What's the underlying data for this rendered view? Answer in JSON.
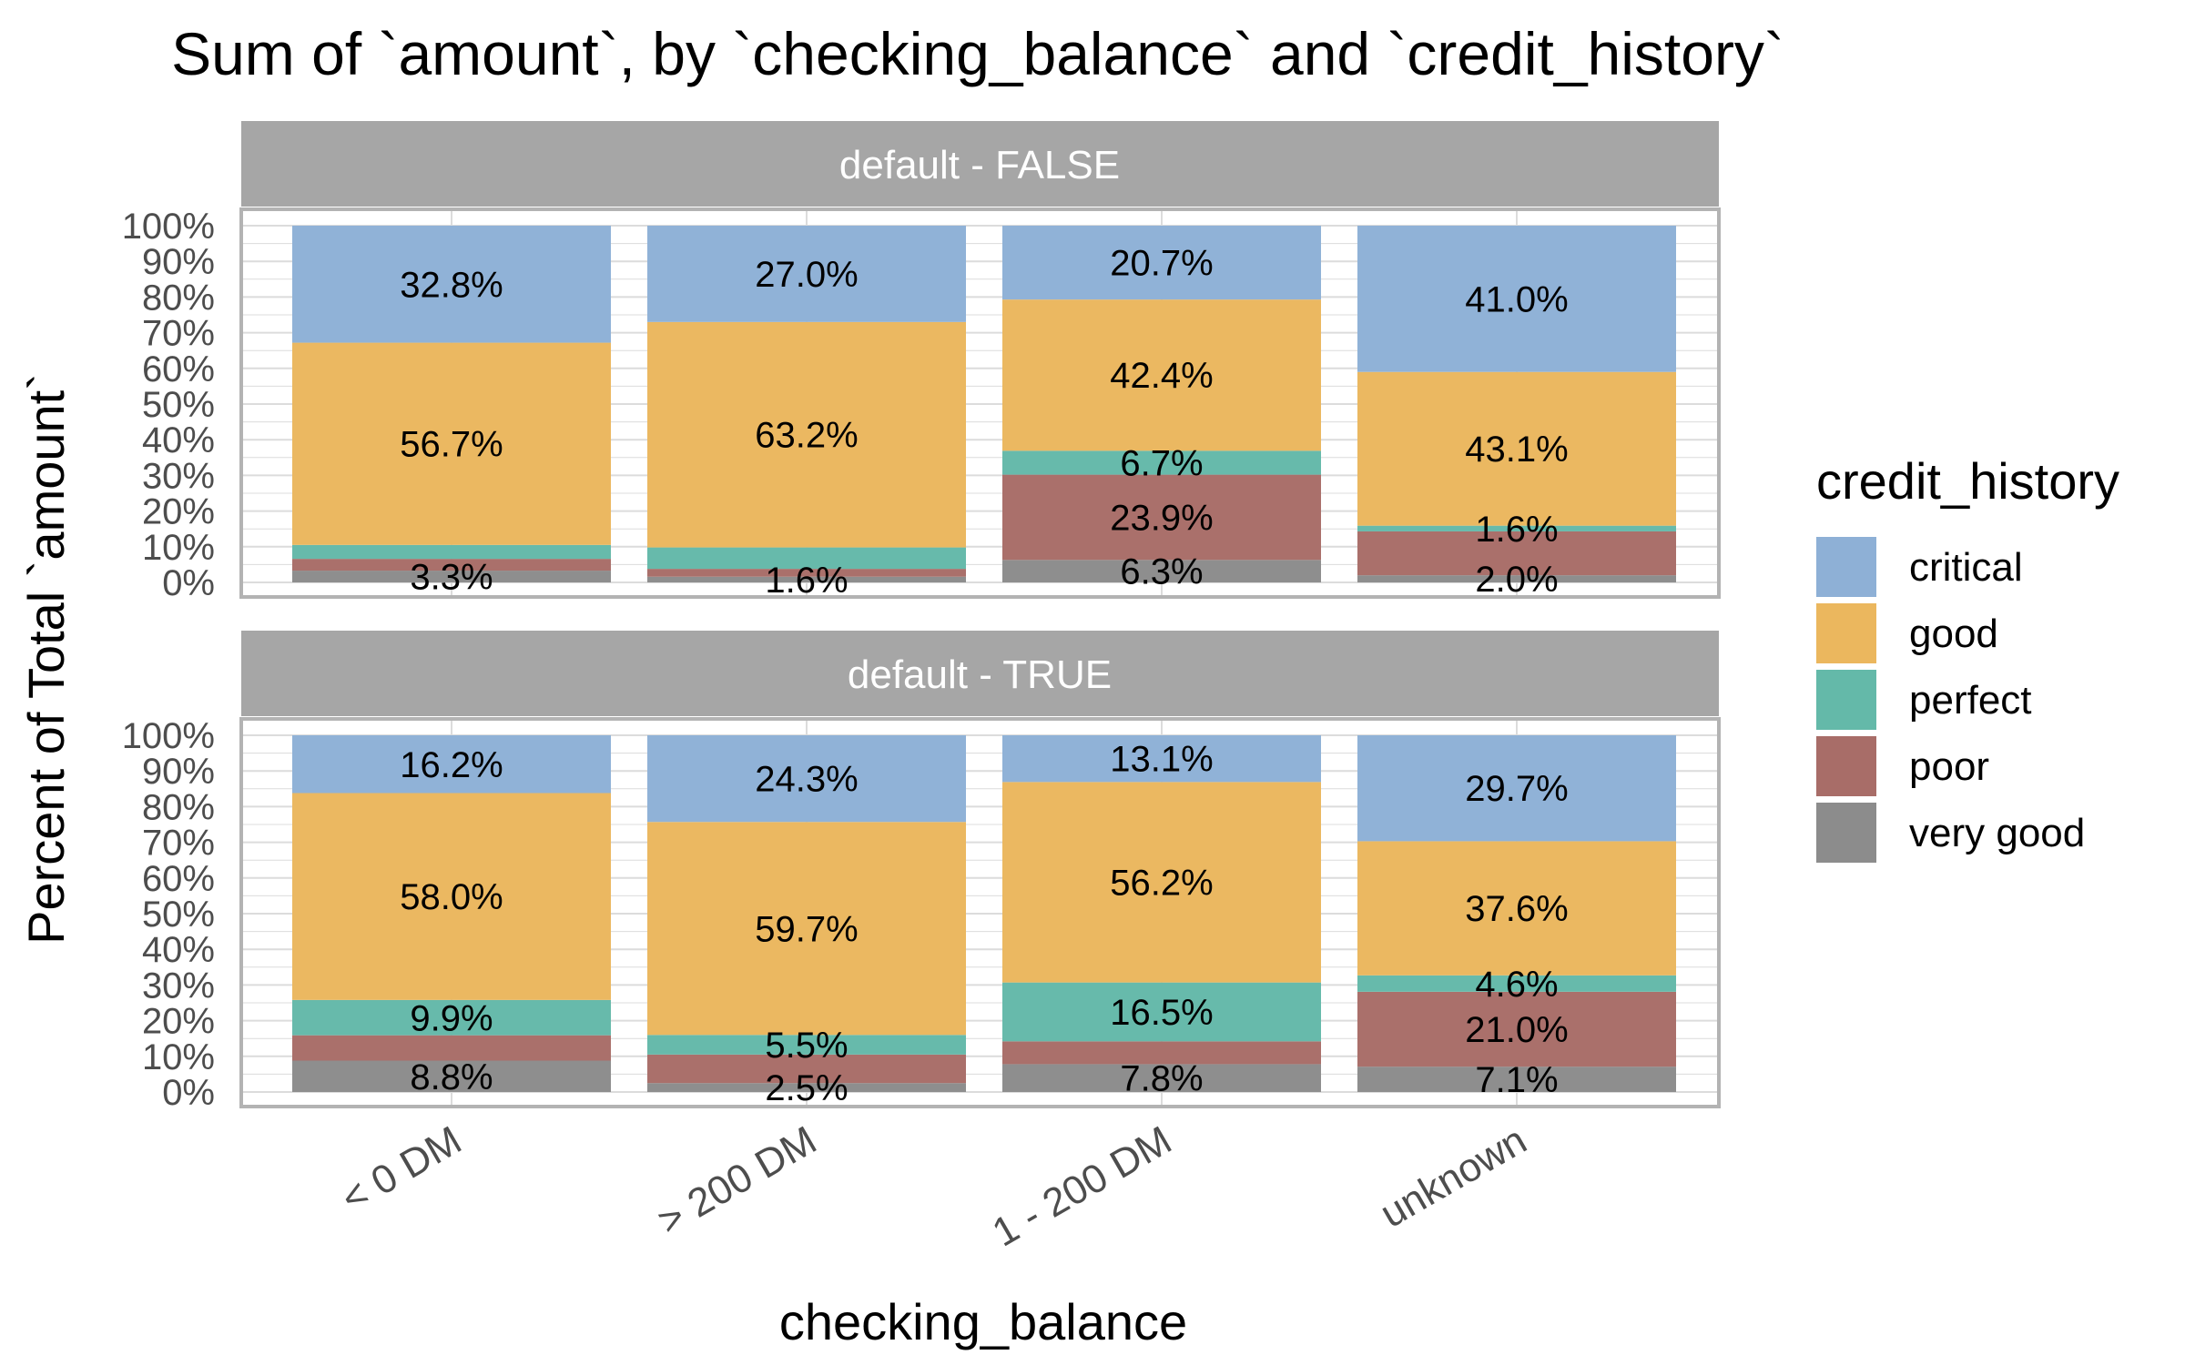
{
  "chart_data": {
    "type": "bar",
    "stacked": true,
    "title": "Sum of `amount`, by `checking_balance` and `credit_history`",
    "xlabel": "checking_balance",
    "ylabel": "Percent of Total `amount`",
    "ylim": [
      0,
      100
    ],
    "yticks": [
      "0%",
      "10%",
      "20%",
      "30%",
      "40%",
      "50%",
      "60%",
      "70%",
      "80%",
      "90%",
      "100%"
    ],
    "categories": [
      "< 0 DM",
      "> 200 DM",
      "1 - 200 DM",
      "unknown"
    ],
    "legend": {
      "title": "credit_history",
      "position": "right",
      "entries": [
        "critical",
        "good",
        "perfect",
        "poor",
        "very good"
      ]
    },
    "colors": {
      "critical": "#8EB0D6",
      "good": "#EBB75E",
      "perfect": "#64B9A9",
      "poor": "#A86D68",
      "very good": "#8C8C8C"
    },
    "grid": true,
    "facets": [
      {
        "label": "default - FALSE",
        "series": [
          {
            "name": "very good",
            "values": [
              3.3,
              1.6,
              6.3,
              2.0
            ]
          },
          {
            "name": "poor",
            "values": [
              3.3,
              2.2,
              23.9,
              12.3
            ]
          },
          {
            "name": "perfect",
            "values": [
              3.9,
              6.0,
              6.7,
              1.6
            ]
          },
          {
            "name": "good",
            "values": [
              56.7,
              63.2,
              42.4,
              43.1
            ]
          },
          {
            "name": "critical",
            "values": [
              32.8,
              27.0,
              20.7,
              41.0
            ]
          }
        ],
        "labels": {
          "very good": [
            "3.3%",
            "1.6%",
            "6.3%",
            "2.0%"
          ],
          "poor": [
            "",
            "",
            "23.9%",
            ""
          ],
          "perfect": [
            "",
            "",
            "6.7%",
            "1.6%"
          ],
          "good": [
            "56.7%",
            "63.2%",
            "42.4%",
            "43.1%"
          ],
          "critical": [
            "32.8%",
            "27.0%",
            "20.7%",
            "41.0%"
          ]
        }
      },
      {
        "label": "default - TRUE",
        "series": [
          {
            "name": "very good",
            "values": [
              8.8,
              2.5,
              7.8,
              7.1
            ]
          },
          {
            "name": "poor",
            "values": [
              7.1,
              8.0,
              6.4,
              21.0
            ]
          },
          {
            "name": "perfect",
            "values": [
              9.9,
              5.5,
              16.5,
              4.6
            ]
          },
          {
            "name": "good",
            "values": [
              58.0,
              59.7,
              56.2,
              37.6
            ]
          },
          {
            "name": "critical",
            "values": [
              16.2,
              24.3,
              13.1,
              29.7
            ]
          }
        ],
        "labels": {
          "very good": [
            "8.8%",
            "2.5%",
            "7.8%",
            "7.1%"
          ],
          "poor": [
            "",
            "",
            "",
            "21.0%"
          ],
          "perfect": [
            "9.9%",
            "5.5%",
            "16.5%",
            "4.6%"
          ],
          "good": [
            "58.0%",
            "59.7%",
            "56.2%",
            "37.6%"
          ],
          "critical": [
            "16.2%",
            "24.3%",
            "13.1%",
            "29.7%"
          ]
        }
      }
    ]
  }
}
